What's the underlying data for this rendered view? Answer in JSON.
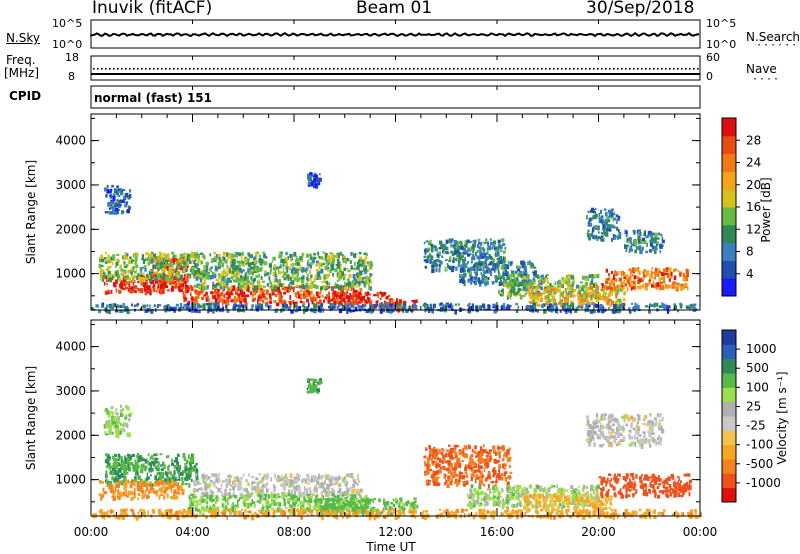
{
  "header": {
    "station": "Inuvik (fitACF)",
    "beam": "Beam 01",
    "date": "30/Sep/2018"
  },
  "strip_labels": {
    "nsky": "N.Sky",
    "nsearch": "N.Search",
    "freq": "Freq.",
    "freq_unit": "[MHz]",
    "nave": "Nave",
    "cpid": "CPID",
    "cpid_value": "normal (fast) 151",
    "nsky_left_top": "10^5",
    "nsky_left_bottom": "10^0",
    "nsky_right_top": "10^5",
    "nsky_right_bottom": "10^0",
    "freq_left_top": "18",
    "freq_left_bottom": "8",
    "nave_right_top": "60",
    "nave_right_bottom": "0"
  },
  "colors": {
    "power_scale": [
      "#1a1aff",
      "#1f4fb0",
      "#3a7fbf",
      "#2e8b57",
      "#66bb44",
      "#d4c21a",
      "#f5a31a",
      "#f07a14",
      "#e84e10",
      "#e01010"
    ],
    "velocity_scale": [
      "#e01010",
      "#f0501a",
      "#f58220",
      "#f5a623",
      "#f2c14e",
      "#c8c8c8",
      "#b0b0b0",
      "#9be04a",
      "#58b848",
      "#2e8b57",
      "#2a5fbf",
      "#1f3aa0"
    ]
  },
  "chart_data": [
    {
      "type": "heatmap",
      "title": "Power",
      "ylabel": "Slant Range [km]",
      "yticks": [
        "1000",
        "2000",
        "3000",
        "4000"
      ],
      "ylim": [
        180,
        4600
      ],
      "xlim": [
        0,
        24
      ],
      "colorbar_label": "Power [dB]",
      "colorbar_ticks": [
        "4",
        "8",
        "12",
        "16",
        "20",
        "24",
        "28"
      ],
      "colorbar_range": [
        0,
        31
      ],
      "regions": [
        {
          "t0": 0.5,
          "t1": 3.8,
          "r0": 600,
          "r1": 1000,
          "level": 29
        },
        {
          "t0": 2.3,
          "t1": 3.8,
          "r0": 700,
          "r1": 1400,
          "level": 26
        },
        {
          "t0": 0.3,
          "t1": 4.2,
          "r0": 900,
          "r1": 1500,
          "level": 14
        },
        {
          "t0": 3.6,
          "t1": 10.6,
          "r0": 350,
          "r1": 750,
          "level": 27
        },
        {
          "t0": 4.0,
          "t1": 11.0,
          "r0": 700,
          "r1": 1500,
          "level": 13
        },
        {
          "t0": 9.5,
          "t1": 11.8,
          "r0": 300,
          "r1": 600,
          "level": 28
        },
        {
          "t0": 11.5,
          "t1": 12.8,
          "r0": 200,
          "r1": 450,
          "level": 28
        },
        {
          "t0": 13.1,
          "t1": 16.3,
          "r0": 1100,
          "r1": 1800,
          "level": 9
        },
        {
          "t0": 14.5,
          "t1": 17.5,
          "r0": 800,
          "r1": 1300,
          "level": 8
        },
        {
          "t0": 16.0,
          "t1": 20.0,
          "r0": 500,
          "r1": 1000,
          "level": 13
        },
        {
          "t0": 17.2,
          "t1": 21.0,
          "r0": 300,
          "r1": 750,
          "level": 19
        },
        {
          "t0": 20.0,
          "t1": 23.5,
          "r0": 700,
          "r1": 1150,
          "level": 24
        },
        {
          "t0": 19.5,
          "t1": 20.8,
          "r0": 1800,
          "r1": 2500,
          "level": 8
        },
        {
          "t0": 21.0,
          "t1": 22.5,
          "r0": 1500,
          "r1": 2000,
          "level": 8
        },
        {
          "t0": 0.5,
          "t1": 1.5,
          "r0": 2400,
          "r1": 3000,
          "level": 6
        },
        {
          "t0": 8.5,
          "t1": 9.0,
          "r0": 3000,
          "r1": 3300,
          "level": 6
        },
        {
          "t0": 0.0,
          "t1": 24.0,
          "r0": 180,
          "r1": 350,
          "level": 7
        }
      ]
    },
    {
      "type": "heatmap",
      "title": "Velocity",
      "ylabel": "Slant Range [km]",
      "yticks": [
        "1000",
        "2000",
        "3000",
        "4000"
      ],
      "ylim": [
        180,
        4600
      ],
      "xlim": [
        0,
        24
      ],
      "xticks": [
        "00:00",
        "04:00",
        "08:00",
        "12:00",
        "16:00",
        "20:00",
        "00:00"
      ],
      "xlabel": "Time UT",
      "colorbar_label": "Velocity [m s⁻¹]",
      "colorbar_ticks": [
        "1000",
        "500",
        "100",
        "25",
        "-25",
        "-100",
        "-500",
        "-1000"
      ],
      "colorbar_range": [
        -1200,
        1200
      ],
      "regions": [
        {
          "t0": 0.5,
          "t1": 4.2,
          "r0": 900,
          "r1": 1600,
          "level": 150
        },
        {
          "t0": 0.3,
          "t1": 3.6,
          "r0": 600,
          "r1": 1000,
          "level": -150
        },
        {
          "t0": 4.0,
          "t1": 10.6,
          "r0": 650,
          "r1": 1150,
          "level": 0
        },
        {
          "t0": 3.8,
          "t1": 10.8,
          "r0": 300,
          "r1": 700,
          "level": 60
        },
        {
          "t0": 9.0,
          "t1": 12.8,
          "r0": 250,
          "r1": 600,
          "level": 80
        },
        {
          "t0": 13.1,
          "t1": 16.5,
          "r0": 900,
          "r1": 1800,
          "level": -300
        },
        {
          "t0": 14.8,
          "t1": 20.0,
          "r0": 400,
          "r1": 900,
          "level": 40
        },
        {
          "t0": 17.0,
          "t1": 20.5,
          "r0": 300,
          "r1": 700,
          "level": -60
        },
        {
          "t0": 20.0,
          "t1": 23.6,
          "r0": 650,
          "r1": 1150,
          "level": -500
        },
        {
          "t0": 19.5,
          "t1": 22.5,
          "r0": 1800,
          "r1": 2500,
          "level": 0
        },
        {
          "t0": 0.5,
          "t1": 1.5,
          "r0": 2000,
          "r1": 2700,
          "level": 40
        },
        {
          "t0": 8.5,
          "t1": 9.0,
          "r0": 3000,
          "r1": 3300,
          "level": 150
        },
        {
          "t0": 0.0,
          "t1": 24.0,
          "r0": 180,
          "r1": 350,
          "level": -120
        }
      ]
    }
  ]
}
